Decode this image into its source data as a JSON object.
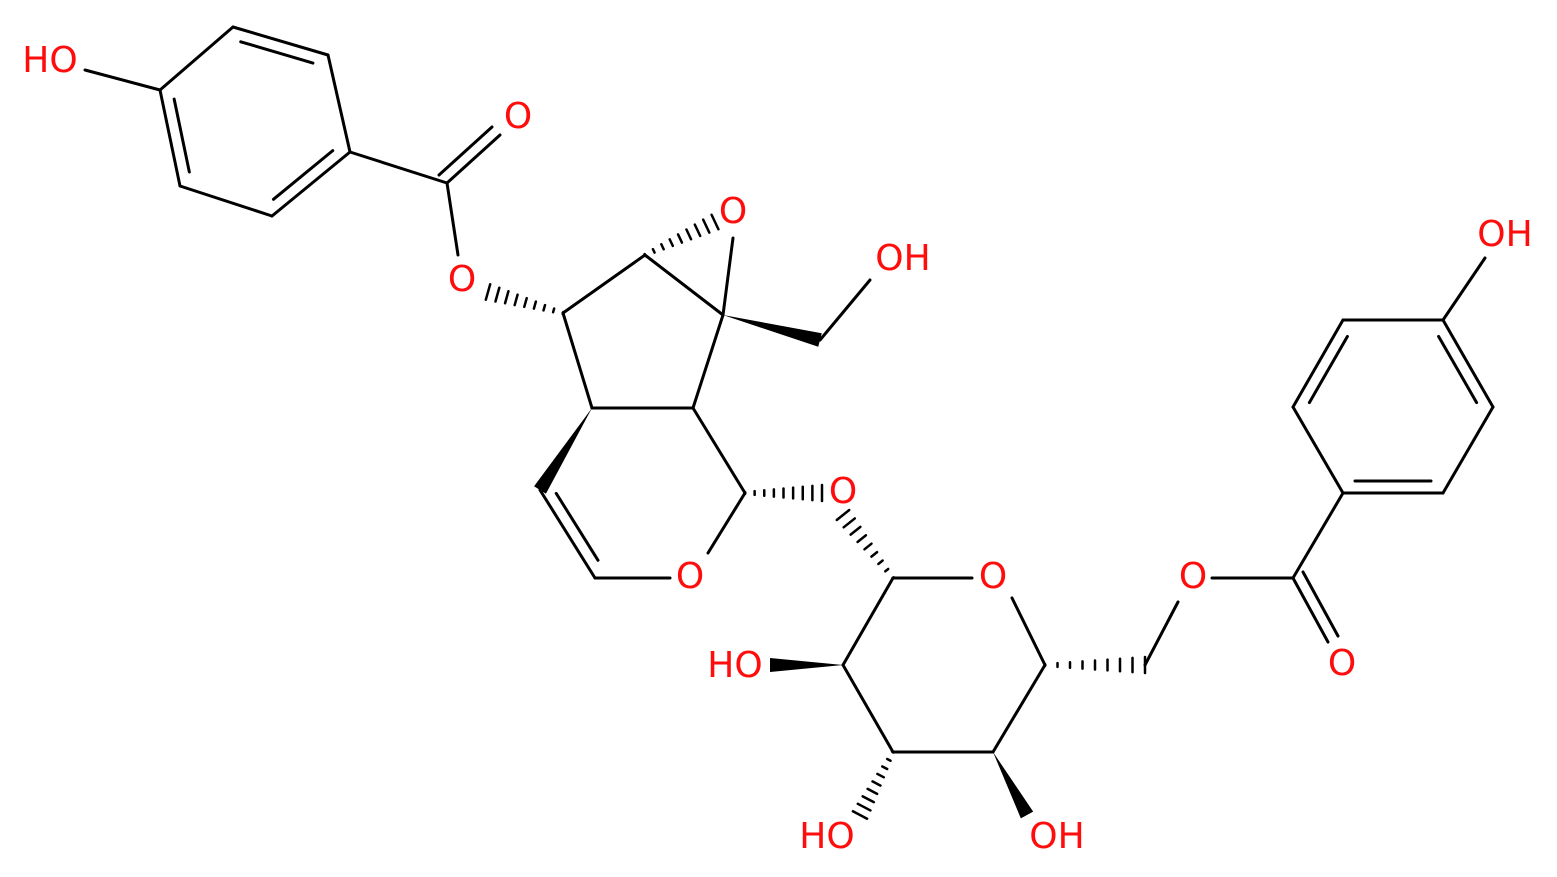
{
  "atoms": [
    {
      "label": "HO"
    },
    {
      "label": "O"
    },
    {
      "label": "O"
    },
    {
      "label": "O"
    },
    {
      "label": "OH"
    },
    {
      "label": "O"
    },
    {
      "label": "O"
    },
    {
      "label": "O"
    },
    {
      "label": "HO"
    },
    {
      "label": "HO"
    },
    {
      "label": "OH"
    },
    {
      "label": "O"
    },
    {
      "label": "O"
    },
    {
      "label": "OH"
    }
  ]
}
